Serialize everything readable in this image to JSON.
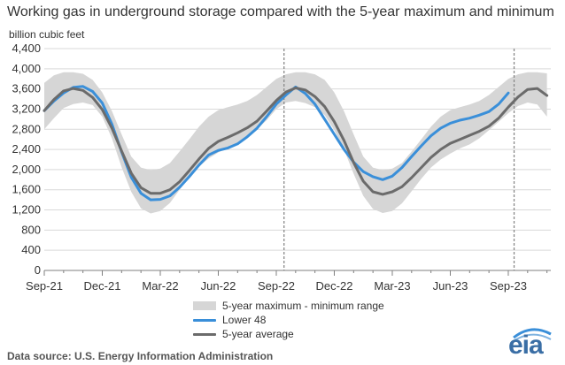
{
  "header": {
    "title": "Working gas in underground storage compared with the 5-year maximum and minimum",
    "unit_label": "billion cubic feet"
  },
  "legend": {
    "band": "5-year maximum - minimum range",
    "lower48": "Lower 48",
    "avg": "5-year average"
  },
  "footer": {
    "source": "Data source:  U.S. Energy Information Administration",
    "logo_text": "eia"
  },
  "colors": {
    "band": "#d6d6d6",
    "lower48": "#3a8fd9",
    "avg": "#6b6b6b",
    "logo": "#3a6ea5"
  },
  "chart_data": {
    "type": "area",
    "title": "Working gas in underground storage compared with the 5-year maximum and minimum",
    "ylabel": "billion cubic feet",
    "ylim": [
      0,
      4400
    ],
    "yticks": [
      0,
      400,
      800,
      1200,
      1600,
      2000,
      2400,
      2800,
      3200,
      3600,
      4000,
      4400
    ],
    "xticks": [
      "Sep-21",
      "Dec-21",
      "Mar-22",
      "Jun-22",
      "Sep-22",
      "Dec-22",
      "Mar-23",
      "Jun-23",
      "Sep-23"
    ],
    "x_tick_positions": [
      0,
      3,
      6,
      9,
      12,
      15,
      18,
      21,
      24
    ],
    "x_range": [
      0,
      26.2
    ],
    "x_unit": "months since Sep-21",
    "grid": true,
    "legend_position": "bottom",
    "vertical_markers_x": [
      12.4,
      24.3
    ],
    "series": [
      {
        "name": "5-year maximum - minimum range",
        "kind": "band",
        "x": [
          0,
          0.5,
          1,
          1.5,
          2,
          2.5,
          3,
          3.5,
          4,
          4.5,
          5,
          5.5,
          6,
          6.5,
          7,
          7.5,
          8,
          8.5,
          9,
          9.5,
          10,
          10.5,
          11,
          11.5,
          12,
          12.5,
          13,
          13.5,
          14,
          14.5,
          15,
          15.5,
          16,
          16.5,
          17,
          17.5,
          18,
          18.5,
          19,
          19.5,
          20,
          20.5,
          21,
          21.5,
          22,
          22.5,
          23,
          23.5,
          24,
          24.5,
          25,
          25.5,
          26
        ],
        "upper": [
          3720,
          3870,
          3930,
          3930,
          3900,
          3780,
          3530,
          3160,
          2700,
          2260,
          2040,
          1990,
          2020,
          2130,
          2360,
          2600,
          2850,
          3050,
          3180,
          3240,
          3290,
          3360,
          3480,
          3640,
          3800,
          3890,
          3930,
          3930,
          3890,
          3780,
          3530,
          3160,
          2700,
          2260,
          2040,
          1990,
          2020,
          2130,
          2360,
          2600,
          2850,
          3050,
          3180,
          3240,
          3290,
          3360,
          3480,
          3640,
          3800,
          3890,
          3930,
          3930,
          3910
        ],
        "lower": [
          2800,
          3020,
          3220,
          3300,
          3330,
          3280,
          3050,
          2620,
          2050,
          1560,
          1230,
          1130,
          1180,
          1340,
          1600,
          1850,
          2060,
          2220,
          2340,
          2430,
          2520,
          2640,
          2800,
          2980,
          3200,
          3330,
          3360,
          3320,
          3240,
          3080,
          2780,
          2400,
          1920,
          1480,
          1220,
          1140,
          1180,
          1330,
          1570,
          1820,
          2040,
          2200,
          2320,
          2420,
          2500,
          2620,
          2780,
          2950,
          3120,
          3260,
          3330,
          3290,
          3050
        ]
      },
      {
        "name": "Lower 48",
        "kind": "line",
        "x": [
          0,
          0.5,
          1,
          1.5,
          2,
          2.5,
          3,
          3.5,
          4,
          4.5,
          5,
          5.5,
          6,
          6.5,
          7,
          7.5,
          8,
          8.5,
          9,
          9.5,
          10,
          10.5,
          11,
          11.5,
          12,
          12.5,
          13,
          13.5,
          14,
          14.5,
          15,
          15.5,
          16,
          16.5,
          17,
          17.5,
          18,
          18.5,
          19,
          19.5,
          20,
          20.5,
          21,
          21.5,
          22,
          22.5,
          23,
          23.5,
          24
        ],
        "values": [
          3170,
          3360,
          3520,
          3630,
          3650,
          3550,
          3320,
          2900,
          2350,
          1850,
          1530,
          1400,
          1410,
          1480,
          1650,
          1860,
          2090,
          2290,
          2380,
          2430,
          2510,
          2650,
          2820,
          3050,
          3300,
          3480,
          3640,
          3510,
          3300,
          3000,
          2700,
          2400,
          2150,
          1960,
          1860,
          1800,
          1870,
          2040,
          2260,
          2470,
          2670,
          2820,
          2920,
          2980,
          3020,
          3080,
          3150,
          3300,
          3520
        ]
      },
      {
        "name": "5-year average",
        "kind": "line",
        "x": [
          0,
          0.5,
          1,
          1.5,
          2,
          2.5,
          3,
          3.5,
          4,
          4.5,
          5,
          5.5,
          6,
          6.5,
          7,
          7.5,
          8,
          8.5,
          9,
          9.5,
          10,
          10.5,
          11,
          11.5,
          12,
          12.5,
          13,
          13.5,
          14,
          14.5,
          15,
          15.5,
          16,
          16.5,
          17,
          17.5,
          18,
          18.5,
          19,
          19.5,
          20,
          20.5,
          21,
          21.5,
          22,
          22.5,
          23,
          23.5,
          24,
          24.5,
          25,
          25.5,
          26
        ],
        "values": [
          3170,
          3390,
          3560,
          3610,
          3570,
          3430,
          3190,
          2820,
          2370,
          1930,
          1640,
          1530,
          1530,
          1600,
          1760,
          1980,
          2210,
          2420,
          2560,
          2640,
          2730,
          2830,
          2960,
          3160,
          3370,
          3540,
          3620,
          3580,
          3450,
          3250,
          2950,
          2580,
          2140,
          1770,
          1560,
          1510,
          1560,
          1660,
          1840,
          2040,
          2240,
          2400,
          2520,
          2600,
          2680,
          2760,
          2860,
          3020,
          3240,
          3440,
          3590,
          3610,
          3470
        ]
      }
    ]
  }
}
